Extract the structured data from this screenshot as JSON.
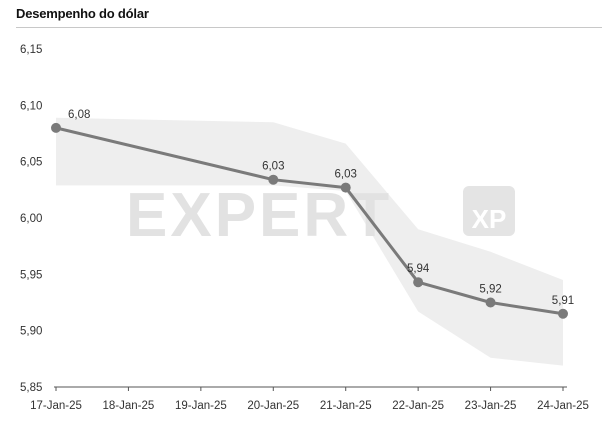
{
  "header": {
    "title": "Desempenho do dólar"
  },
  "watermark": {
    "text": "EXPERT",
    "badge": "XP"
  },
  "colors": {
    "line": "#7a7a7a",
    "band": "#eeeeee",
    "axis": "#555555",
    "text": "#333333",
    "watermark": "#e6e6e6"
  },
  "chart_data": {
    "type": "line",
    "title": "Desempenho do dólar",
    "xlabel": "",
    "ylabel": "",
    "categories": [
      "17-Jan-25",
      "18-Jan-25",
      "19-Jan-25",
      "20-Jan-25",
      "21-Jan-25",
      "22-Jan-25",
      "23-Jan-25",
      "24-Jan-25"
    ],
    "ylim": [
      5.85,
      6.15
    ],
    "yticks": [
      "5,85",
      "5,90",
      "5,95",
      "6,00",
      "6,05",
      "6,10",
      "6,15"
    ],
    "grid": false,
    "series": [
      {
        "x": [
          "17-Jan-25",
          "20-Jan-25",
          "21-Jan-25",
          "22-Jan-25",
          "23-Jan-25",
          "24-Jan-25"
        ],
        "values": [
          6.08,
          6.034,
          6.027,
          5.943,
          5.925,
          5.915
        ],
        "labels": [
          "6,08",
          "6,03",
          "6,03",
          "5,94",
          "5,92",
          "5,91"
        ]
      }
    ],
    "band": {
      "x": [
        "17-Jan-25",
        "20-Jan-25",
        "21-Jan-25",
        "22-Jan-25",
        "23-Jan-25",
        "24-Jan-25"
      ],
      "upper": [
        6.089,
        6.085,
        6.066,
        5.99,
        5.97,
        5.945
      ],
      "lower": [
        6.029,
        6.029,
        6.024,
        5.917,
        5.876,
        5.869
      ]
    }
  }
}
